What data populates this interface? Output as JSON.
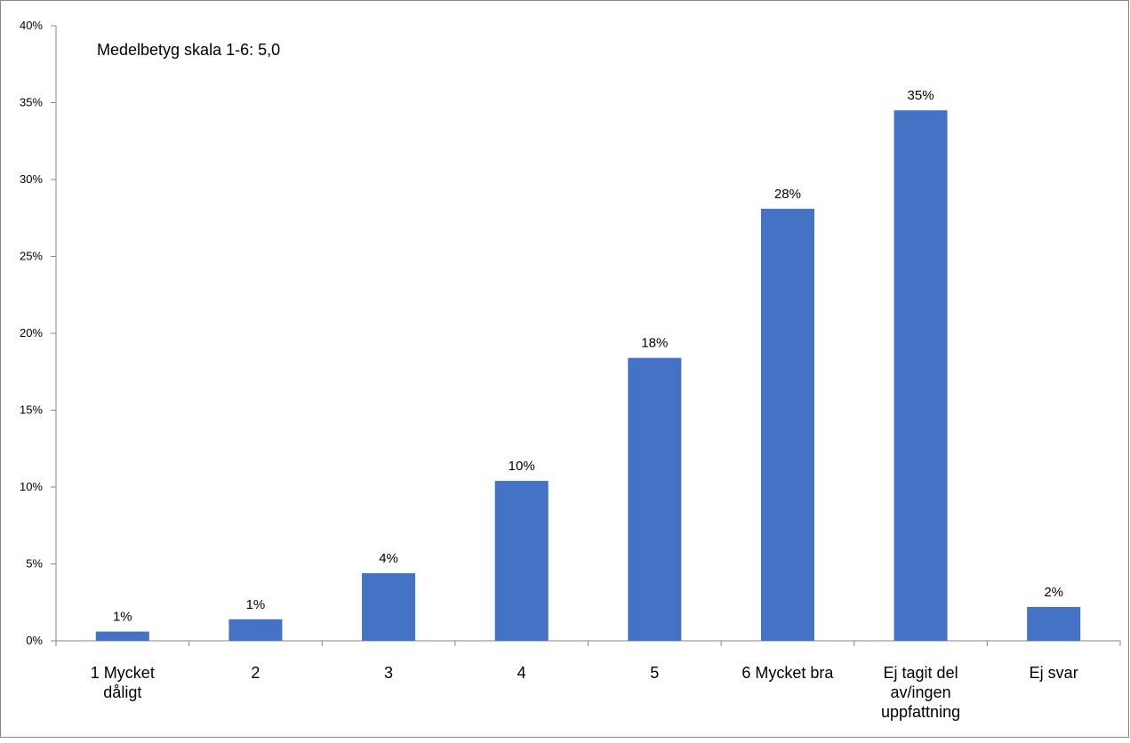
{
  "chart_data": {
    "type": "bar",
    "annotation": "Medelbetyg skala 1-6: 5,0",
    "categories": [
      [
        "1 Mycket",
        "dåligt"
      ],
      [
        "2"
      ],
      [
        "3"
      ],
      [
        "4"
      ],
      [
        "5"
      ],
      [
        "6 Mycket bra"
      ],
      [
        "Ej tagit del",
        "av/ingen",
        "uppfattning"
      ],
      [
        "Ej svar"
      ]
    ],
    "values": [
      0.6,
      1.4,
      4.4,
      10.4,
      18.4,
      28.1,
      34.5,
      2.2
    ],
    "data_labels": [
      "1%",
      "1%",
      "4%",
      "10%",
      "18%",
      "28%",
      "35%",
      "2%"
    ],
    "y_ticks": [
      "0%",
      "5%",
      "10%",
      "15%",
      "20%",
      "25%",
      "30%",
      "35%",
      "40%"
    ],
    "ylim": [
      0,
      40
    ],
    "grid": false,
    "legend": "none",
    "colors": {
      "bar": "#4472C4",
      "axis": "#868686",
      "frame": "#868686"
    }
  }
}
